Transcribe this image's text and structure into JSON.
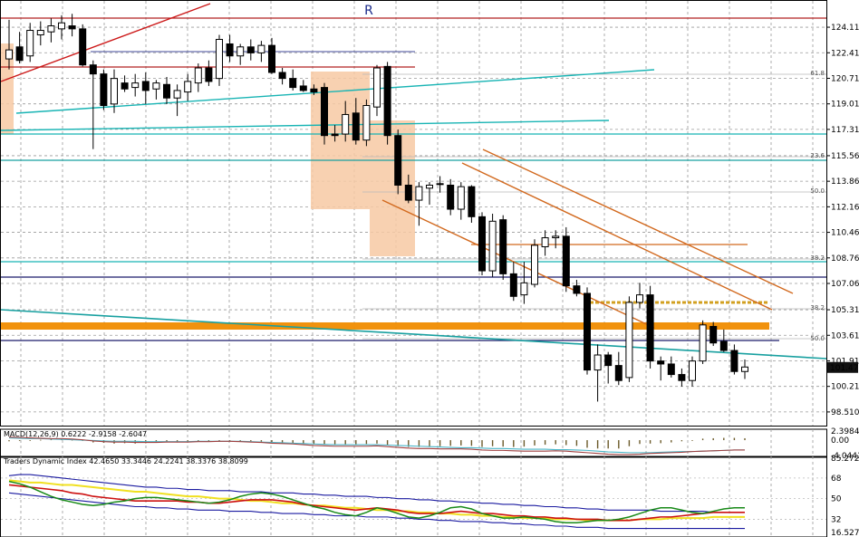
{
  "chart_data": [
    {
      "type": "candlestick",
      "pane": "price",
      "marker_text": "R",
      "current_price_label": "101.471",
      "y_ticks": [
        "124.110",
        "122.410",
        "120.710",
        "119.010",
        "117.310",
        "115.560",
        "113.860",
        "112.160",
        "110.460",
        "108.760",
        "107.060",
        "105.310",
        "103.610",
        "101.910",
        "100.210",
        "98.510"
      ],
      "fib_labels": [
        "61.8",
        "23.6",
        "50.0",
        "38.2",
        "38.2",
        "50.0"
      ],
      "ylim": [
        97.6,
        125.8
      ],
      "candles": [
        {
          "o": 122.0,
          "h": 124.6,
          "l": 121.3,
          "c": 122.6
        },
        {
          "o": 122.8,
          "h": 123.8,
          "l": 121.7,
          "c": 121.9
        },
        {
          "o": 122.2,
          "h": 124.4,
          "l": 121.8,
          "c": 123.9
        },
        {
          "o": 123.6,
          "h": 124.5,
          "l": 122.9,
          "c": 123.9
        },
        {
          "o": 123.8,
          "h": 124.7,
          "l": 123.1,
          "c": 124.2
        },
        {
          "o": 124.0,
          "h": 124.9,
          "l": 123.3,
          "c": 124.4
        },
        {
          "o": 124.2,
          "h": 125.0,
          "l": 123.5,
          "c": 124.0
        },
        {
          "o": 124.0,
          "h": 124.3,
          "l": 121.5,
          "c": 121.6
        },
        {
          "o": 121.6,
          "h": 121.9,
          "l": 116.0,
          "c": 121.0
        },
        {
          "o": 121.0,
          "h": 121.3,
          "l": 118.6,
          "c": 118.9
        },
        {
          "o": 119.0,
          "h": 121.3,
          "l": 118.4,
          "c": 120.7
        },
        {
          "o": 120.4,
          "h": 120.9,
          "l": 119.8,
          "c": 120.0
        },
        {
          "o": 120.1,
          "h": 121.0,
          "l": 119.5,
          "c": 120.4
        },
        {
          "o": 120.5,
          "h": 121.1,
          "l": 119.0,
          "c": 119.9
        },
        {
          "o": 120.0,
          "h": 120.6,
          "l": 119.3,
          "c": 120.4
        },
        {
          "o": 120.3,
          "h": 120.8,
          "l": 119.0,
          "c": 119.4
        },
        {
          "o": 119.4,
          "h": 120.3,
          "l": 118.2,
          "c": 119.9
        },
        {
          "o": 119.8,
          "h": 121.0,
          "l": 119.2,
          "c": 120.5
        },
        {
          "o": 120.4,
          "h": 121.7,
          "l": 119.8,
          "c": 121.4
        },
        {
          "o": 121.4,
          "h": 121.9,
          "l": 120.2,
          "c": 120.5
        },
        {
          "o": 120.7,
          "h": 123.6,
          "l": 120.2,
          "c": 123.3
        },
        {
          "o": 123.0,
          "h": 123.6,
          "l": 121.8,
          "c": 122.2
        },
        {
          "o": 122.2,
          "h": 123.0,
          "l": 121.6,
          "c": 122.8
        },
        {
          "o": 122.8,
          "h": 123.3,
          "l": 121.9,
          "c": 122.4
        },
        {
          "o": 122.4,
          "h": 123.2,
          "l": 121.8,
          "c": 122.9
        },
        {
          "o": 122.9,
          "h": 123.4,
          "l": 121.0,
          "c": 121.1
        },
        {
          "o": 121.1,
          "h": 121.4,
          "l": 120.3,
          "c": 120.7
        },
        {
          "o": 120.7,
          "h": 121.3,
          "l": 119.9,
          "c": 120.1
        },
        {
          "o": 120.2,
          "h": 120.6,
          "l": 119.8,
          "c": 119.9
        },
        {
          "o": 120.0,
          "h": 120.3,
          "l": 119.6,
          "c": 119.8
        },
        {
          "o": 120.1,
          "h": 120.4,
          "l": 116.3,
          "c": 116.9
        },
        {
          "o": 117.0,
          "h": 117.6,
          "l": 116.5,
          "c": 116.9
        },
        {
          "o": 117.0,
          "h": 119.2,
          "l": 116.5,
          "c": 118.3
        },
        {
          "o": 118.4,
          "h": 119.4,
          "l": 116.3,
          "c": 116.6
        },
        {
          "o": 116.6,
          "h": 119.3,
          "l": 116.2,
          "c": 118.9
        },
        {
          "o": 118.8,
          "h": 121.6,
          "l": 118.2,
          "c": 121.4
        },
        {
          "o": 121.5,
          "h": 121.8,
          "l": 116.3,
          "c": 116.9
        },
        {
          "o": 116.9,
          "h": 117.3,
          "l": 113.0,
          "c": 113.6
        },
        {
          "o": 113.6,
          "h": 114.3,
          "l": 112.4,
          "c": 112.6
        },
        {
          "o": 112.6,
          "h": 113.8,
          "l": 110.9,
          "c": 113.5
        },
        {
          "o": 113.4,
          "h": 113.8,
          "l": 112.3,
          "c": 113.6
        },
        {
          "o": 113.7,
          "h": 114.2,
          "l": 113.1,
          "c": 113.7
        },
        {
          "o": 113.6,
          "h": 114.0,
          "l": 111.6,
          "c": 112.0
        },
        {
          "o": 112.0,
          "h": 113.8,
          "l": 111.3,
          "c": 113.5
        },
        {
          "o": 113.5,
          "h": 113.6,
          "l": 111.1,
          "c": 111.5
        },
        {
          "o": 111.5,
          "h": 111.8,
          "l": 107.6,
          "c": 107.9
        },
        {
          "o": 107.9,
          "h": 111.7,
          "l": 107.5,
          "c": 111.2
        },
        {
          "o": 111.3,
          "h": 111.6,
          "l": 107.3,
          "c": 107.7
        },
        {
          "o": 107.7,
          "h": 108.5,
          "l": 105.9,
          "c": 106.2
        },
        {
          "o": 106.3,
          "h": 108.5,
          "l": 105.7,
          "c": 107.1
        },
        {
          "o": 107.0,
          "h": 110.0,
          "l": 106.8,
          "c": 109.6
        },
        {
          "o": 109.5,
          "h": 110.6,
          "l": 108.9,
          "c": 110.1
        },
        {
          "o": 110.1,
          "h": 110.6,
          "l": 109.4,
          "c": 110.2
        },
        {
          "o": 110.2,
          "h": 110.8,
          "l": 106.5,
          "c": 106.9
        },
        {
          "o": 106.9,
          "h": 107.3,
          "l": 106.2,
          "c": 106.4
        },
        {
          "o": 106.4,
          "h": 106.8,
          "l": 101.0,
          "c": 101.3
        },
        {
          "o": 101.3,
          "h": 103.0,
          "l": 99.2,
          "c": 102.3
        },
        {
          "o": 102.3,
          "h": 102.5,
          "l": 100.4,
          "c": 101.6
        },
        {
          "o": 101.6,
          "h": 102.5,
          "l": 100.3,
          "c": 100.6
        },
        {
          "o": 100.8,
          "h": 106.2,
          "l": 100.5,
          "c": 105.8
        },
        {
          "o": 105.8,
          "h": 107.1,
          "l": 105.4,
          "c": 106.3
        },
        {
          "o": 106.3,
          "h": 106.9,
          "l": 101.4,
          "c": 101.9
        },
        {
          "o": 101.9,
          "h": 102.2,
          "l": 100.6,
          "c": 101.7
        },
        {
          "o": 101.7,
          "h": 102.2,
          "l": 100.8,
          "c": 101.0
        },
        {
          "o": 101.0,
          "h": 101.4,
          "l": 100.2,
          "c": 100.6
        },
        {
          "o": 100.6,
          "h": 102.2,
          "l": 100.2,
          "c": 101.9
        },
        {
          "o": 101.9,
          "h": 104.6,
          "l": 101.7,
          "c": 104.3
        },
        {
          "o": 104.2,
          "h": 104.5,
          "l": 102.9,
          "c": 103.1
        },
        {
          "o": 103.2,
          "h": 104.0,
          "l": 102.5,
          "c": 102.6
        },
        {
          "o": 102.6,
          "h": 103.0,
          "l": 101.0,
          "c": 101.2
        },
        {
          "o": 101.2,
          "h": 102.0,
          "l": 100.7,
          "c": 101.5
        }
      ]
    },
    {
      "type": "histogram",
      "pane": "macd",
      "label": "MACD(12,26,9) 0.6222 -2.9158 -2.6047",
      "y_ticks": [
        "2.3984",
        "0.00",
        "-4.0441"
      ],
      "ylim": [
        -4.0441,
        2.3984
      ],
      "bars": [
        -0.3,
        -0.2,
        -0.2,
        0.1,
        0.2,
        0.3,
        0.1,
        -0.1,
        -0.6,
        -0.7,
        -0.9,
        -0.8,
        -0.9,
        -0.8,
        -0.6,
        -0.5,
        -0.6,
        -0.5,
        -0.4,
        -0.3,
        -0.2,
        -0.1,
        -0.2,
        -0.3,
        -0.4,
        -0.5,
        -0.6,
        -0.7,
        -0.9,
        -1.1,
        -1.2,
        -1.2,
        -1.2,
        -1.1,
        -1.0,
        -0.9,
        -1.3,
        -1.6,
        -1.8,
        -1.8,
        -1.7,
        -1.6,
        -1.5,
        -1.4,
        -1.5,
        -1.8,
        -1.6,
        -1.7,
        -1.8,
        -1.7,
        -1.4,
        -1.2,
        -1.1,
        -1.3,
        -1.5,
        -2.0,
        -2.2,
        -2.2,
        -2.2,
        -1.6,
        -1.0,
        -0.9,
        -0.8,
        -0.6,
        -0.3,
        0.0,
        0.4,
        0.5,
        0.6,
        0.6,
        0.5
      ],
      "signal": [
        0.6,
        0.5,
        0.4,
        0.4,
        0.3,
        0.2,
        0.1,
        0.0,
        -0.1,
        -0.2,
        -0.3,
        -0.3,
        -0.3,
        -0.4,
        -0.4,
        -0.4,
        -0.4,
        -0.4,
        -0.3,
        -0.3,
        -0.3,
        -0.3,
        -0.3,
        -0.4,
        -0.5,
        -0.6,
        -0.7,
        -0.8,
        -0.9,
        -1.0,
        -1.1,
        -1.2,
        -1.2,
        -1.2,
        -1.2,
        -1.2,
        -1.3,
        -1.4,
        -1.5,
        -1.6,
        -1.7,
        -1.8,
        -1.9,
        -2.0,
        -2.0,
        -2.1,
        -2.2,
        -2.2,
        -2.3,
        -2.4,
        -2.4,
        -2.4,
        -2.5,
        -2.5,
        -2.6,
        -2.7,
        -2.9,
        -3.1,
        -3.2,
        -3.3,
        -3.3,
        -3.3,
        -3.2,
        -3.1,
        -3.0,
        -3.0,
        -2.9,
        -2.8,
        -2.7,
        -2.6,
        -2.6
      ],
      "macd_line": [
        0.8,
        0.7,
        0.6,
        0.5,
        0.4,
        0.4,
        0.3,
        0.1,
        -0.2,
        -0.4,
        -0.5,
        -0.5,
        -0.6,
        -0.6,
        -0.6,
        -0.5,
        -0.5,
        -0.5,
        -0.4,
        -0.4,
        -0.3,
        -0.3,
        -0.4,
        -0.5,
        -0.6,
        -0.8,
        -0.9,
        -1.0,
        -1.2,
        -1.4,
        -1.5,
        -1.6,
        -1.6,
        -1.6,
        -1.6,
        -1.5,
        -1.7,
        -1.9,
        -2.1,
        -2.2,
        -2.2,
        -2.3,
        -2.3,
        -2.3,
        -2.4,
        -2.6,
        -2.7,
        -2.7,
        -2.8,
        -2.9,
        -2.9,
        -2.9,
        -2.8,
        -2.9,
        -3.1,
        -3.3,
        -3.5,
        -3.7,
        -3.8,
        -3.8,
        -3.7,
        -3.5,
        -3.4,
        -3.3,
        -3.2,
        -3.0,
        -2.9,
        -2.8,
        -2.7,
        -2.6,
        -2.6
      ]
    },
    {
      "type": "line",
      "pane": "tdi",
      "label": "Traders Dynamic Index 42.4650 33.3446 24.2241 38.3376 38.8099",
      "y_ticks": [
        "85.2723",
        "68",
        "50",
        "32",
        "16.527"
      ],
      "ylim": [
        16.527,
        85.2723
      ],
      "series": [
        {
          "color": "#1a1aa0",
          "values": [
            70,
            71,
            71,
            70,
            69,
            68,
            67,
            66,
            65,
            64,
            63,
            62,
            61,
            60,
            60,
            59,
            59,
            58,
            58,
            57,
            57,
            57,
            56,
            56,
            56,
            55,
            55,
            55,
            54,
            54,
            53,
            53,
            52,
            52,
            52,
            51,
            51,
            50,
            50,
            49,
            49,
            48,
            48,
            47,
            47,
            46,
            46,
            45,
            45,
            44,
            44,
            43,
            43,
            42,
            42,
            41,
            41,
            40,
            40,
            40,
            40,
            40,
            39,
            39,
            39,
            39,
            39,
            38,
            38,
            38,
            38
          ]
        },
        {
          "color": "#1a1aa0",
          "values": [
            55,
            54,
            53,
            52,
            51,
            50,
            49,
            48,
            47,
            46,
            45,
            44,
            43,
            43,
            42,
            42,
            41,
            41,
            40,
            40,
            40,
            39,
            39,
            39,
            38,
            38,
            37,
            37,
            37,
            36,
            36,
            35,
            35,
            35,
            34,
            34,
            34,
            33,
            33,
            32,
            32,
            31,
            31,
            30,
            30,
            30,
            29,
            29,
            28,
            28,
            27,
            27,
            26,
            26,
            25,
            25,
            25,
            24,
            24,
            24,
            24,
            24,
            24,
            24,
            24,
            24,
            24,
            24,
            24,
            24,
            24
          ]
        },
        {
          "color": "#f0e020",
          "values": [
            66,
            65,
            64,
            64,
            63,
            62,
            62,
            61,
            60,
            59,
            58,
            57,
            56,
            56,
            55,
            54,
            53,
            52,
            52,
            51,
            50,
            50,
            49,
            48,
            48,
            47,
            46,
            46,
            45,
            44,
            44,
            43,
            42,
            42,
            41,
            40,
            40,
            39,
            39,
            38,
            38,
            37,
            37,
            36,
            36,
            35,
            35,
            34,
            34,
            33,
            33,
            33,
            32,
            32,
            32,
            31,
            31,
            31,
            31,
            31,
            32,
            32,
            32,
            33,
            33,
            33,
            33,
            34,
            34,
            34,
            34
          ]
        },
        {
          "color": "#cc1010",
          "values": [
            62,
            61,
            60,
            59,
            58,
            57,
            55,
            54,
            52,
            51,
            50,
            49,
            48,
            48,
            48,
            48,
            48,
            47,
            47,
            46,
            46,
            47,
            48,
            49,
            49,
            49,
            48,
            47,
            45,
            44,
            43,
            42,
            41,
            40,
            41,
            42,
            41,
            40,
            38,
            37,
            37,
            37,
            38,
            39,
            38,
            37,
            37,
            36,
            35,
            35,
            34,
            34,
            33,
            33,
            32,
            32,
            32,
            31,
            31,
            31,
            32,
            33,
            34,
            34,
            35,
            36,
            37,
            38,
            38,
            38,
            38
          ]
        },
        {
          "color": "#188a18",
          "values": [
            65,
            63,
            60,
            56,
            52,
            49,
            47,
            45,
            44,
            45,
            47,
            48,
            50,
            51,
            51,
            50,
            49,
            48,
            47,
            46,
            47,
            49,
            52,
            54,
            55,
            54,
            52,
            49,
            46,
            43,
            41,
            38,
            36,
            35,
            38,
            42,
            40,
            37,
            34,
            33,
            35,
            38,
            42,
            43,
            41,
            37,
            35,
            33,
            33,
            34,
            33,
            32,
            30,
            29,
            29,
            30,
            31,
            31,
            32,
            34,
            37,
            40,
            42,
            42,
            40,
            38,
            37,
            39,
            41,
            42,
            42
          ]
        }
      ]
    }
  ]
}
